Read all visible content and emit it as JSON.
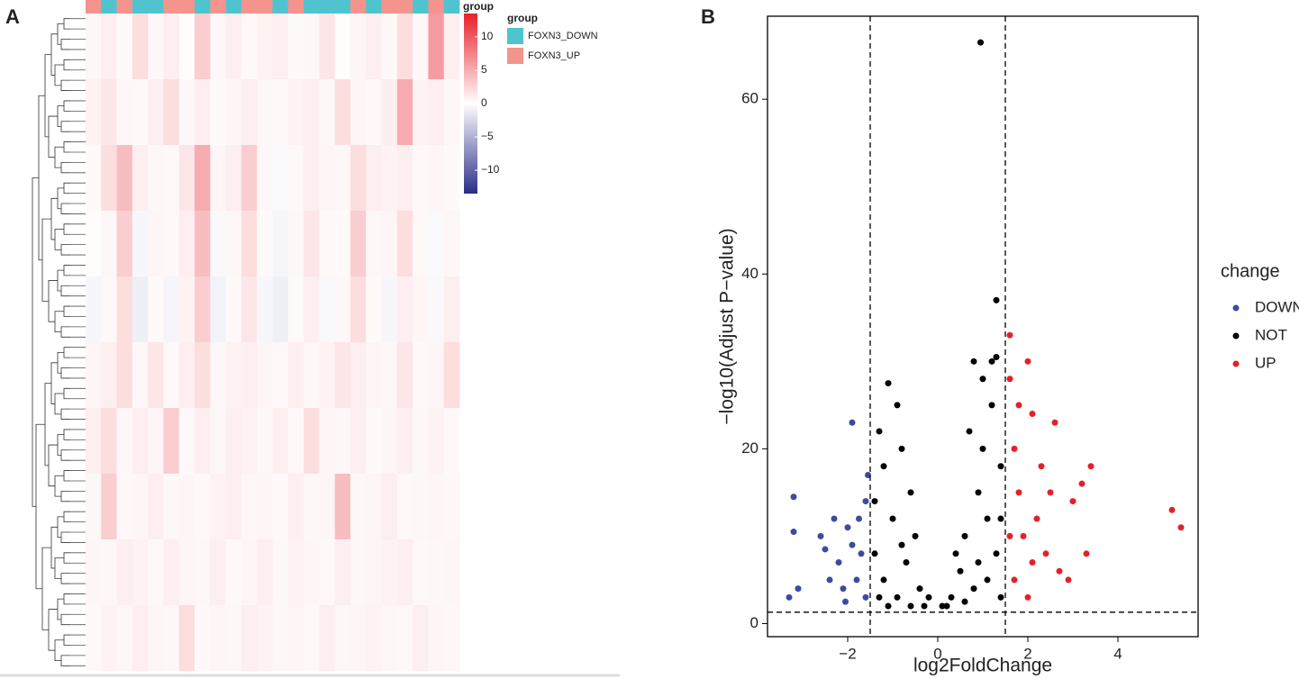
{
  "chart_data": [
    {
      "type": "heatmap",
      "panel_label": "A",
      "annotation_title": "group",
      "legend_title": "group",
      "groups": [
        {
          "name": "FOXN3_DOWN",
          "color": "#4fc4cf"
        },
        {
          "name": "FOXN3_UP",
          "color": "#f4948c"
        }
      ],
      "column_groups": [
        "FOXN3_UP",
        "FOXN3_DOWN",
        "FOXN3_UP",
        "FOXN3_DOWN",
        "FOXN3_DOWN",
        "FOXN3_UP",
        "FOXN3_UP",
        "FOXN3_DOWN",
        "FOXN3_UP",
        "FOXN3_DOWN",
        "FOXN3_UP",
        "FOXN3_UP",
        "FOXN3_DOWN",
        "FOXN3_UP",
        "FOXN3_DOWN",
        "FOXN3_DOWN",
        "FOXN3_DOWN",
        "FOXN3_UP",
        "FOXN3_DOWN",
        "FOXN3_UP",
        "FOXN3_UP",
        "FOXN3_DOWN",
        "FOXN3_UP",
        "FOXN3_DOWN"
      ],
      "colors": {
        "low": "#2b2d86",
        "mid": "#ffffff",
        "high": "#e8202a"
      },
      "clim": [
        -13.5,
        13.5
      ],
      "cticks": [
        {
          "value": 10,
          "label": "10"
        },
        5,
        0,
        {
          "value": -5,
          "label": "−5"
        },
        {
          "value": -10,
          "label": "−10"
        }
      ],
      "values": [
        [
          0.5,
          1,
          0.3,
          2,
          0.5,
          1,
          0.2,
          3,
          0.5,
          1,
          0.4,
          0.8,
          1,
          0.3,
          0.5,
          1.5,
          0.2,
          0.6,
          1,
          0.4,
          2,
          0.5,
          6,
          1
        ],
        [
          0.8,
          1.5,
          0.5,
          0.3,
          1,
          2,
          0.4,
          1,
          0.3,
          0.6,
          1,
          0.5,
          0.4,
          0.8,
          1,
          0.5,
          2,
          0.6,
          0.4,
          1,
          5,
          0.7,
          1,
          0.5
        ],
        [
          0.3,
          2,
          4,
          1,
          0.5,
          0.4,
          1.5,
          5,
          0.6,
          1,
          3,
          0.5,
          -0.3,
          0.4,
          1,
          0.6,
          0.5,
          2,
          1,
          0.8,
          1,
          0.4,
          0.6,
          0.3
        ],
        [
          0.2,
          0.5,
          3,
          -0.5,
          0.6,
          0.4,
          1,
          4,
          -0.4,
          0.5,
          2,
          0.3,
          -0.6,
          0.5,
          1.5,
          0.4,
          0.3,
          3,
          0.5,
          0.6,
          2,
          0.4,
          -0.3,
          0.5
        ],
        [
          -0.5,
          0.4,
          2,
          -1,
          0.3,
          -0.6,
          0.8,
          3,
          -0.8,
          0.4,
          1.5,
          -0.5,
          -1,
          0.3,
          1,
          -0.4,
          0.5,
          2,
          0.3,
          -0.5,
          1,
          0.6,
          -0.4,
          1
        ],
        [
          0.6,
          1,
          2,
          0.5,
          1.5,
          0.4,
          1,
          2,
          0.5,
          0.8,
          1,
          0.6,
          0.4,
          1,
          0.5,
          0.8,
          1.5,
          1,
          0.6,
          0.5,
          1.5,
          0.4,
          0.6,
          2
        ],
        [
          1,
          2,
          0.5,
          1,
          0.6,
          3,
          0.4,
          1,
          0.5,
          1,
          0.8,
          0.5,
          1,
          0.4,
          2,
          0.6,
          0.5,
          1,
          0.3,
          0.6,
          1,
          0.5,
          0.8,
          0.4
        ],
        [
          0.5,
          3,
          0.4,
          0.6,
          1,
          0.5,
          0.6,
          0.4,
          0.8,
          1,
          0.5,
          0.6,
          0.4,
          1,
          0.5,
          0.6,
          4,
          0.5,
          0.6,
          1,
          0.4,
          0.5,
          0.6,
          0.5
        ],
        [
          0.6,
          0.5,
          1,
          0.8,
          0.4,
          1,
          0.6,
          0.5,
          1,
          0.4,
          0.6,
          1,
          0.5,
          0.8,
          0.6,
          0.4,
          1,
          0.5,
          0.6,
          0.8,
          1,
          0.4,
          0.5,
          0.6
        ],
        [
          0.4,
          0.8,
          0.5,
          1,
          0.6,
          0.5,
          2,
          0.4,
          0.6,
          0.5,
          1,
          0.8,
          0.5,
          0.6,
          0.4,
          1,
          0.5,
          0.6,
          0.8,
          0.5,
          0.4,
          1,
          0.6,
          0.5
        ]
      ]
    },
    {
      "type": "scatter",
      "panel_label": "B",
      "x_label": "log2FoldChange",
      "y_label": "−log10(Adjust P−value)",
      "legend_title": "change",
      "xlim": [
        -3.78,
        5.78
      ],
      "ylim": [
        -1.5,
        69.5
      ],
      "xticks": [
        {
          "value": -2,
          "label": "−2"
        },
        0,
        2,
        4
      ],
      "yticks": [
        0,
        20,
        40,
        60
      ],
      "vlines": [
        -1.5,
        1.5
      ],
      "hline": 1.3,
      "series": [
        {
          "name": "DOWN",
          "color": "#3b4ba0",
          "x": [
            -3.2,
            -3.2,
            -3.1,
            -3.3,
            -2.6,
            -2.5,
            -2.3,
            -2.2,
            -2,
            -1.9,
            -2.1,
            -1.8,
            -1.7,
            -1.6,
            -1.6,
            -1.9,
            -2.4,
            -1.75,
            -2.05,
            -1.55
          ],
          "values": [
            14.5,
            10.5,
            4,
            3,
            10,
            8.5,
            12,
            7,
            11,
            23,
            4,
            5,
            8,
            14,
            3,
            9,
            5,
            12,
            2.5,
            17
          ]
        },
        {
          "name": "NOT",
          "color": "#000000",
          "x": [
            0.95,
            1.3,
            1.3,
            0.8,
            -1.1,
            -0.9,
            -1.3,
            -1.2,
            -0.8,
            -1,
            -0.6,
            -0.5,
            -1.4,
            -1.2,
            -0.9,
            -0.7,
            -0.4,
            -0.3,
            -1.1,
            -0.2,
            0.3,
            0.5,
            0.6,
            0.9,
            1,
            1.2,
            1.4,
            0.7,
            1.1,
            0.4,
            0.2,
            0.8,
            1.3,
            1.4,
            0.6,
            1,
            1.2,
            -0.6,
            -1.4,
            -0.8,
            0.9,
            1.1,
            1.4,
            -1.3,
            0.1
          ],
          "values": [
            66.5,
            37,
            30.5,
            30,
            27.5,
            25,
            22,
            18,
            20,
            12,
            15,
            10,
            8,
            5,
            3,
            7,
            4,
            2,
            2,
            3,
            3,
            6,
            10,
            15,
            20,
            25,
            18,
            22,
            12,
            8,
            2,
            4,
            8,
            3,
            2.5,
            28,
            30,
            2,
            14,
            9,
            7,
            5,
            12,
            3,
            2
          ]
        },
        {
          "name": "UP",
          "color": "#e4202a",
          "x": [
            1.6,
            1.6,
            1.7,
            1.8,
            2,
            2.1,
            1.9,
            2.2,
            2.4,
            2.6,
            2.7,
            3,
            3.2,
            3.4,
            3.3,
            5.2,
            5.4,
            1.7,
            2,
            2.3,
            1.6,
            2.5,
            1.8,
            2.9,
            2.1
          ],
          "values": [
            28,
            33,
            20,
            15,
            30,
            24,
            10,
            12,
            8,
            23,
            6,
            14,
            16,
            18,
            8,
            13,
            11,
            5,
            3,
            18,
            10,
            15,
            25,
            5,
            7
          ]
        }
      ]
    }
  ]
}
